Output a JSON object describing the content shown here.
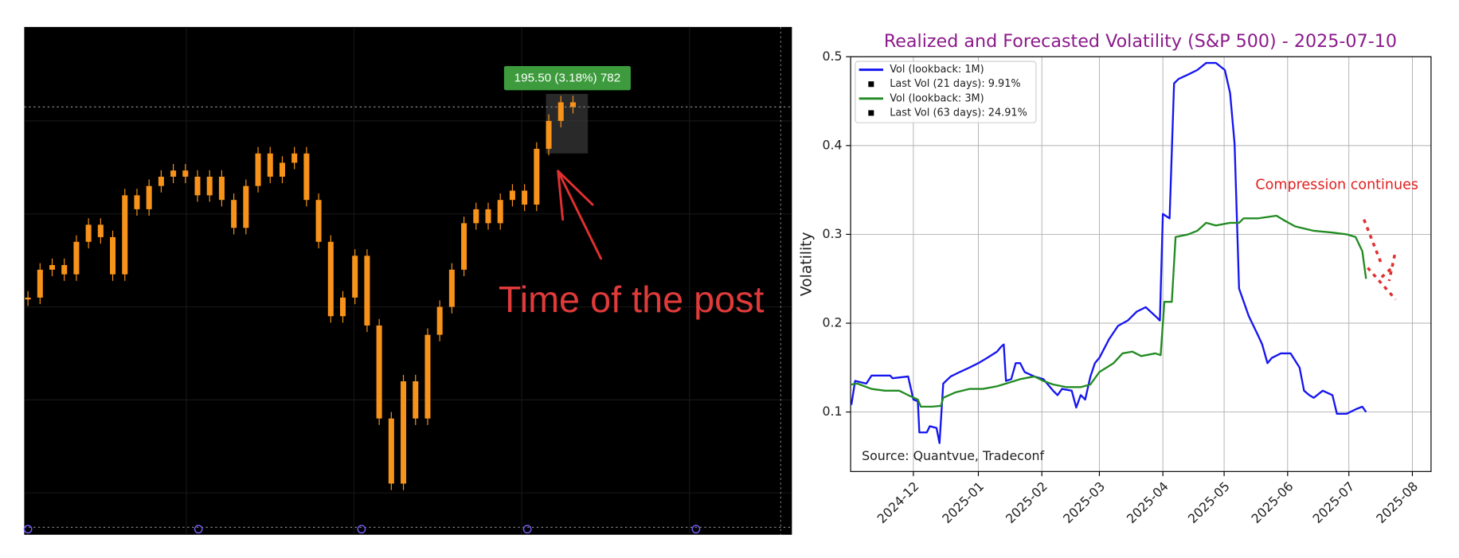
{
  "chart_data": [
    {
      "type": "candle",
      "color": "#f7931a",
      "price_label": "195.50 (3.18%) 782",
      "annotations": [
        "Time of the post"
      ],
      "values": [
        170.9,
        174.5,
        175.1,
        173.9,
        178.1,
        180.3,
        178.7,
        173.9,
        184.1,
        182.3,
        185.3,
        186.5,
        187.3,
        186.5,
        184.1,
        186.5,
        183.5,
        179.9,
        185.3,
        189.5,
        186.5,
        188.3,
        189.5,
        183.5,
        178.1,
        168.5,
        170.9,
        176.3,
        167.3,
        155.3,
        146.9,
        160.1,
        155.3,
        166.1,
        169.7,
        174.5,
        180.5,
        182.3,
        180.5,
        183.5,
        184.7,
        182.9,
        190.1,
        193.7,
        196.1,
        195.5
      ]
    },
    {
      "type": "line",
      "title": "Realized and Forecasted Volatility (S&P 500) - 2025-07-10",
      "ylabel": "Volatility",
      "annotations": [
        "Compression continues",
        "Source: Quantvue, Tradeconf"
      ],
      "xlim": [
        2024.829,
        2025.606
      ],
      "xticks": [
        {
          "value": 2024.913,
          "label": "2024-12"
        },
        {
          "value": 2025.0,
          "label": "2025-01"
        },
        {
          "value": 2025.085,
          "label": "2025-02"
        },
        {
          "value": 2025.162,
          "label": "2025-03"
        },
        {
          "value": 2025.247,
          "label": "2025-04"
        },
        {
          "value": 2025.329,
          "label": "2025-05"
        },
        {
          "value": 2025.414,
          "label": "2025-06"
        },
        {
          "value": 2025.496,
          "label": "2025-07"
        },
        {
          "value": 2025.581,
          "label": "2025-08"
        }
      ],
      "ylim": [
        0.033,
        0.5
      ],
      "yticks": [
        0.1,
        0.2,
        0.3,
        0.4,
        0.5
      ],
      "grid": true,
      "legend": "upper left",
      "series": [
        {
          "name": "Vol (lookback: 1M)",
          "color": "#1515f0",
          "x": [
            2024.83,
            2024.835,
            2024.85,
            2024.857,
            2024.86,
            2024.882,
            2024.885,
            2024.906,
            2024.913,
            2024.919,
            2024.921,
            2024.931,
            2024.935,
            2024.944,
            2024.948,
            2024.953,
            2024.963,
            2024.975,
            2024.988,
            2025.0,
            2025.012,
            2025.025,
            2025.031,
            2025.034,
            2025.037,
            2025.044,
            2025.05,
            2025.056,
            2025.062,
            2025.075,
            2025.087,
            2025.1,
            2025.106,
            2025.112,
            2025.125,
            2025.131,
            2025.137,
            2025.143,
            2025.15,
            2025.156,
            2025.162,
            2025.175,
            2025.187,
            2025.2,
            2025.212,
            2025.224,
            2025.237,
            2025.243,
            2025.247,
            2025.256,
            2025.262,
            2025.268,
            2025.281,
            2025.293,
            2025.305,
            2025.318,
            2025.33,
            2025.337,
            2025.343,
            2025.349,
            2025.362,
            2025.374,
            2025.38,
            2025.387,
            2025.393,
            2025.405,
            2025.418,
            2025.43,
            2025.436,
            2025.443,
            2025.449,
            2025.461,
            2025.474,
            2025.48,
            2025.493,
            2025.505,
            2025.514,
            2025.519
          ],
          "values": [
            0.108,
            0.135,
            0.132,
            0.141,
            0.141,
            0.141,
            0.138,
            0.14,
            0.114,
            0.112,
            0.077,
            0.077,
            0.084,
            0.082,
            0.065,
            0.132,
            0.14,
            0.145,
            0.15,
            0.155,
            0.161,
            0.168,
            0.174,
            0.176,
            0.135,
            0.137,
            0.155,
            0.155,
            0.145,
            0.14,
            0.137,
            0.124,
            0.119,
            0.126,
            0.124,
            0.105,
            0.119,
            0.114,
            0.14,
            0.155,
            0.161,
            0.182,
            0.197,
            0.203,
            0.213,
            0.218,
            0.208,
            0.203,
            0.323,
            0.318,
            0.47,
            0.475,
            0.48,
            0.485,
            0.493,
            0.493,
            0.485,
            0.459,
            0.402,
            0.239,
            0.208,
            0.187,
            0.176,
            0.155,
            0.161,
            0.166,
            0.166,
            0.15,
            0.124,
            0.119,
            0.116,
            0.124,
            0.119,
            0.098,
            0.098,
            0.103,
            0.106,
            0.1
          ]
        },
        {
          "name": "Vol (lookback: 3M)",
          "color": "#228b22",
          "x": [
            2024.83,
            2024.838,
            2024.857,
            2024.875,
            2024.894,
            2024.906,
            2024.919,
            2024.923,
            2024.938,
            2024.95,
            2024.953,
            2024.969,
            2024.988,
            2025.006,
            2025.025,
            2025.037,
            2025.056,
            2025.075,
            2025.087,
            2025.1,
            2025.118,
            2025.137,
            2025.15,
            2025.162,
            2025.181,
            2025.193,
            2025.206,
            2025.218,
            2025.237,
            2025.244,
            2025.249,
            2025.259,
            2025.264,
            2025.281,
            2025.293,
            2025.305,
            2025.318,
            2025.337,
            2025.349,
            2025.355,
            2025.374,
            2025.399,
            2025.411,
            2025.424,
            2025.449,
            2025.474,
            2025.493,
            2025.505,
            2025.514,
            2025.519
          ],
          "values": [
            0.131,
            0.132,
            0.126,
            0.124,
            0.124,
            0.119,
            0.114,
            0.106,
            0.106,
            0.107,
            0.116,
            0.122,
            0.126,
            0.126,
            0.129,
            0.132,
            0.137,
            0.14,
            0.135,
            0.131,
            0.128,
            0.128,
            0.131,
            0.145,
            0.155,
            0.166,
            0.168,
            0.163,
            0.166,
            0.164,
            0.224,
            0.224,
            0.297,
            0.3,
            0.304,
            0.313,
            0.31,
            0.313,
            0.313,
            0.318,
            0.318,
            0.321,
            0.315,
            0.309,
            0.304,
            0.302,
            0.3,
            0.297,
            0.281,
            0.25
          ]
        }
      ],
      "legend_extra": [
        {
          "name": "Last Vol (21 days): 9.91%",
          "color": "#000000"
        },
        {
          "name": "Last Vol (63 days): 24.91%",
          "color": "#000000"
        }
      ]
    }
  ]
}
